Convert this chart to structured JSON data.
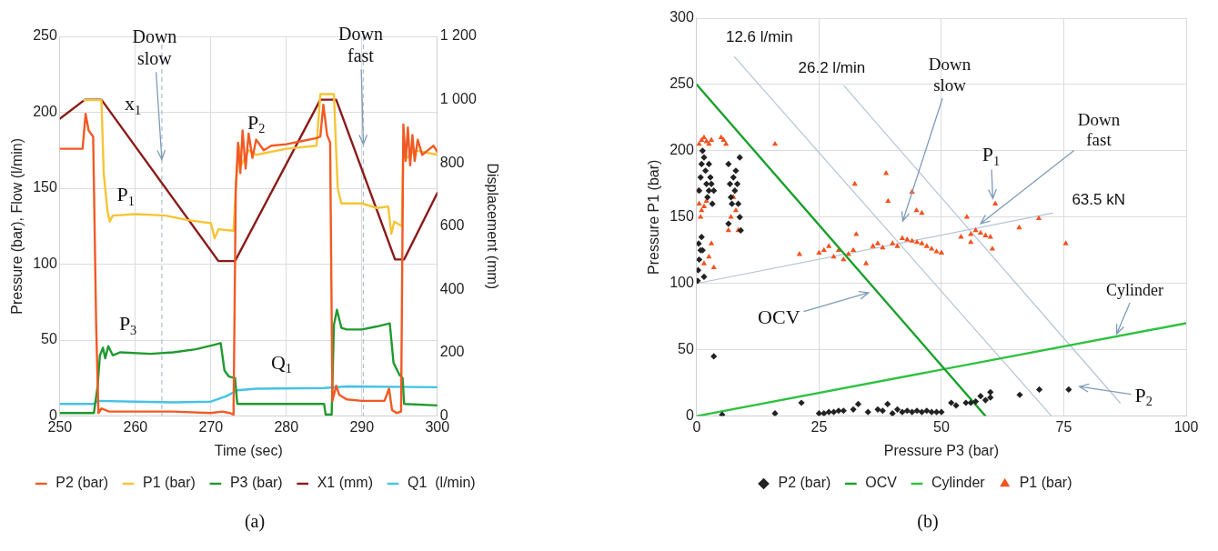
{
  "chart_data": [
    {
      "type": "line",
      "xlabel": "Time (sec)",
      "ylabel": "Pressure (bar), Flow (l/min)",
      "y2label": "Displacement (mm)",
      "xlim": [
        250,
        300
      ],
      "xticks": [
        250,
        260,
        270,
        280,
        290,
        300
      ],
      "ylim": [
        0,
        250
      ],
      "yticks": [
        0,
        50,
        100,
        150,
        200,
        250
      ],
      "y2lim": [
        0,
        1200
      ],
      "y2ticks": [
        0,
        200,
        400,
        600,
        800,
        {
          "value": 1000,
          "label": "1 000"
        },
        {
          "value": 1200,
          "label": "1 200"
        }
      ],
      "grid": true,
      "legend": "bottom",
      "series": [
        {
          "name": "P2 (bar)",
          "color": "#f15a24",
          "x": [
            250,
            253,
            253.4,
            253.8,
            254.4,
            254.8,
            255.1,
            255.5,
            256.5,
            265,
            270,
            271.5,
            272.5,
            273,
            273.3,
            273.6,
            273.9,
            274.2,
            274.6,
            275,
            275.5,
            276,
            277,
            278,
            280,
            282,
            284,
            284.5,
            284.9,
            285.4,
            285.8,
            286.1,
            286.6,
            287,
            288,
            290,
            293,
            293.6,
            294,
            294.6,
            295.2,
            295.5,
            295.8,
            296.1,
            296.4,
            296.7,
            297,
            297.4,
            298,
            299,
            299.5,
            300
          ],
          "values": [
            176,
            176,
            199,
            188,
            184,
            60,
            2,
            5,
            3,
            3,
            2,
            3,
            2,
            1,
            150,
            180,
            160,
            188,
            163,
            186,
            170,
            182,
            175,
            178,
            179,
            181,
            183,
            184,
            205,
            185,
            180,
            10,
            20,
            14,
            11,
            10,
            10,
            18,
            4,
            2,
            3,
            192,
            168,
            190,
            165,
            185,
            168,
            182,
            172,
            176,
            178,
            174
          ]
        },
        {
          "name": "P1 (bar)",
          "color": "#f5c534",
          "x": [
            253.2,
            255.5,
            255.8,
            256.3,
            256.6,
            257,
            260,
            264,
            267,
            270,
            270.5,
            271,
            273,
            273.3,
            273.7,
            274,
            275,
            276,
            280,
            284,
            284.5,
            286.3,
            286.8,
            287.3,
            290,
            292,
            293.5,
            293.9,
            294.3,
            295.3,
            295.5,
            296,
            297,
            300
          ],
          "values": [
            208,
            208,
            160,
            135,
            128,
            132,
            133,
            132,
            129,
            127,
            117,
            123,
            122,
            150,
            178,
            165,
            175,
            172,
            176,
            178,
            212,
            212,
            150,
            140,
            140,
            137,
            138,
            120,
            128,
            125,
            180,
            170,
            175,
            172
          ]
        },
        {
          "name": "P3 (bar)",
          "color": "#1f9a2f",
          "x": [
            250,
            254.5,
            255,
            255.3,
            255.7,
            256,
            256.4,
            257,
            258,
            262,
            265,
            268,
            270.5,
            271.3,
            271.8,
            272.4,
            273.2,
            273.5,
            280,
            285,
            285.2,
            286,
            286.3,
            286.7,
            287.3,
            288,
            290,
            292,
            293.7,
            294.2,
            295,
            295.4,
            295.6,
            300
          ],
          "values": [
            2,
            2,
            20,
            40,
            45,
            38,
            46,
            40,
            42,
            41,
            42,
            44,
            47,
            48,
            30,
            26,
            25,
            8,
            8,
            8,
            1,
            1,
            60,
            70,
            58,
            57,
            57,
            59,
            61,
            35,
            27,
            25,
            8,
            7
          ]
        },
        {
          "name": "X1 (mm)",
          "color": "#8b1a1a",
          "axis": "y2",
          "x": [
            250,
            253.3,
            255.5,
            271,
            273.2,
            284.5,
            286.6,
            294.4,
            295.6,
            300
          ],
          "values": [
            940,
            1000,
            1000,
            490,
            490,
            1000,
            1000,
            495,
            495,
            705
          ]
        },
        {
          "name": "Q1  (l/min)",
          "color": "#45c2e6",
          "x": [
            250,
            254.5,
            255,
            260,
            265,
            270,
            272,
            273.5,
            276,
            285,
            288,
            300
          ],
          "values": [
            8,
            8,
            10,
            9.5,
            9,
            9.5,
            13,
            17,
            18,
            18.5,
            19.5,
            19
          ]
        }
      ],
      "ref_lines": [
        {
          "axis": "x",
          "value": 263.5,
          "color": "#a9bfd6",
          "line_style": "dashed"
        },
        {
          "axis": "x",
          "value": 290.2,
          "color": "#a9bfd6",
          "line_style": "dashed"
        }
      ],
      "annotations": [
        {
          "text": "Down slow",
          "x": 263.5,
          "y": 169
        },
        {
          "text": "Down fast",
          "x": 290.2,
          "y": 179
        },
        "x$_{1}$",
        "P$_{2}$",
        "P$_{1}$",
        "P$_{3}$",
        "Q$_{1}$",
        "(a)"
      ]
    },
    {
      "type": "scatter",
      "xlabel": "Pressure P3 (bar)",
      "ylabel": "Pressure P1 (bar)",
      "xlim": [
        0,
        100
      ],
      "xticks": [
        0,
        25,
        50,
        75,
        100
      ],
      "ylim": [
        0,
        300
      ],
      "yticks": [
        0,
        50,
        100,
        150,
        200,
        250,
        300
      ],
      "grid": true,
      "legend": "bottom",
      "series": [
        {
          "name": "P2 (bar)",
          "type": "scatter",
          "marker": "diamond",
          "color": "#222222",
          "x": [
            0.2,
            0.3,
            0.5,
            0.8,
            0.4,
            1,
            1.2,
            1.5,
            0.5,
            0.8,
            1,
            1.2,
            1.5,
            1.8,
            2,
            2.2,
            2.5,
            2.8,
            3,
            3.2,
            3.5,
            2.5,
            6.5,
            6.8,
            7,
            7.2,
            7.5,
            8,
            8.3,
            8.5,
            8.8,
            9,
            8.8,
            6.5,
            7.8,
            3.5,
            5.2,
            16,
            21.4,
            25,
            26,
            27,
            28,
            29,
            30,
            32,
            33,
            35,
            37,
            38,
            39,
            40,
            41,
            42,
            43,
            44,
            45,
            46,
            47,
            48,
            49,
            50,
            52,
            53,
            55,
            56,
            57,
            58,
            59,
            60,
            60,
            66,
            70,
            76
          ],
          "values": [
            102,
            110,
            118,
            125,
            130,
            135,
            125,
            105,
            170,
            180,
            190,
            200,
            195,
            185,
            175,
            165,
            170,
            180,
            175,
            160,
            170,
            190,
            190,
            175,
            165,
            160,
            180,
            185,
            175,
            160,
            150,
            140,
            195,
            145,
            170,
            45,
            1,
            2,
            10,
            2,
            2,
            3,
            3,
            4,
            4,
            5,
            9,
            3,
            5,
            4,
            9,
            2,
            5,
            3,
            4,
            3,
            4,
            3,
            4,
            3,
            3,
            3,
            10,
            8,
            10,
            10,
            11,
            15,
            12,
            18,
            14,
            16,
            20,
            20
          ]
        },
        {
          "name": "OCV",
          "type": "line",
          "color": "#18a02a",
          "x": [
            0,
            59
          ],
          "values": [
            250,
            0
          ]
        },
        {
          "name": "Cylinder",
          "type": "line",
          "color": "#2cc23e",
          "x": [
            0,
            100
          ],
          "values": [
            0,
            70
          ]
        },
        {
          "name": "P1 (bar)",
          "type": "scatter",
          "marker": "triangle",
          "color": "#f4511e",
          "x": [
            0.5,
            1,
            1.5,
            2,
            2.5,
            3,
            5,
            5.5,
            6,
            0.3,
            0.5,
            0.8,
            1,
            1.5,
            2,
            1.5,
            2.5,
            3,
            3.5,
            6.5,
            7,
            7.5,
            8.5,
            8,
            16,
            21,
            25,
            26,
            27,
            28,
            29,
            30,
            31,
            32,
            32.6,
            34.6,
            32.3,
            38.7,
            39.1,
            44,
            44.9,
            46,
            36,
            37,
            38,
            40,
            41,
            42,
            43,
            44,
            45,
            46,
            47,
            48,
            49,
            50,
            55.2,
            56,
            57,
            58,
            59,
            60,
            54,
            56,
            60.4,
            61,
            65.9,
            69.9,
            75.4
          ],
          "values": [
            205,
            208,
            210,
            207,
            205,
            208,
            210,
            208,
            205,
            170,
            160,
            150,
            155,
            158,
            162,
            115,
            120,
            130,
            112,
            140,
            150,
            165,
            140,
            155,
            205,
            122,
            123,
            125,
            128,
            120,
            125,
            118,
            122,
            125,
            137,
            115,
            175,
            183,
            162,
            169,
            155,
            153,
            128,
            130,
            127,
            130,
            128,
            134,
            133,
            132,
            131,
            130,
            128,
            126,
            124,
            123,
            150,
            137,
            140,
            138,
            136,
            135,
            135,
            131,
            126,
            160,
            142,
            149,
            130
          ]
        },
        {
          "type": "line",
          "color": "#b4c4d4",
          "x": [
            7.7,
            72.5
          ],
          "values": [
            271,
            0
          ]
        },
        {
          "type": "line",
          "color": "#b4c4d4",
          "x": [
            30.1,
            86.5
          ],
          "values": [
            249,
            10
          ]
        },
        {
          "type": "line",
          "color": "#b4c4d4",
          "x": [
            0,
            72.7
          ],
          "values": [
            100,
            153
          ]
        }
      ],
      "annotations": [
        "12.6 l/min",
        "26.2 l/min",
        "Down slow",
        {
          "text": "Down fast",
          "x": 58,
          "y": 145
        },
        {
          "text": "P$_{1}$",
          "x": 60.5,
          "y": 164
        },
        "63.5 kN",
        "OCV",
        {
          "text": "Cylinder",
          "x": 85.8,
          "y": 62
        },
        "P$_{2}$",
        "(b)"
      ]
    }
  ]
}
